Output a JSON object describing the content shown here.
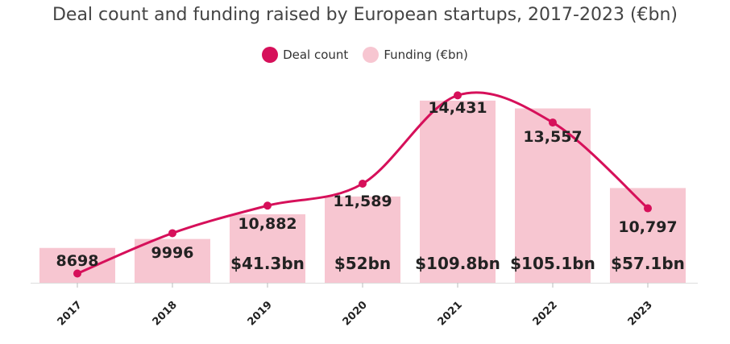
{
  "chart_data": {
    "type": "bar",
    "title": "Deal count and funding raised by European startups, 2017-2023 (€bn)",
    "categories": [
      "2017",
      "2018",
      "2019",
      "2020",
      "2021",
      "2022",
      "2023"
    ],
    "series": [
      {
        "name": "Deal count",
        "kind": "line",
        "values": [
          8698,
          9996,
          10882,
          11589,
          14431,
          13557,
          10797
        ],
        "labels": [
          "8698",
          "9996",
          "10,882",
          "11,589",
          "14,431",
          "13,557",
          "10,797"
        ],
        "color": "#d6105a"
      },
      {
        "name": "Funding (€bn)",
        "kind": "bar",
        "values": [
          21.0,
          26.4,
          41.3,
          52,
          109.8,
          105.1,
          57.1
        ],
        "labels": [
          "",
          "",
          "$41.3bn",
          "$52bn",
          "$109.8bn",
          "$105.1bn",
          "$57.1bn"
        ],
        "color": "#f7c6d1"
      }
    ],
    "xlabel": "",
    "ylabel": "",
    "ylim_funding": [
      0,
      118
    ],
    "ylim_count": [
      8400,
      14700
    ],
    "legend_position": "top-center",
    "grid": false
  }
}
